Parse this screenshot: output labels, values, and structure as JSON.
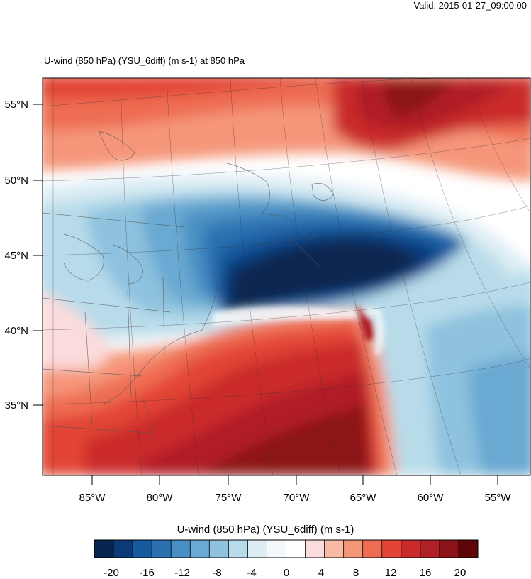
{
  "header": {
    "valid_text": "Valid: 2015-01-27_09:00:00",
    "title_text": "U-wind (850 hPa) (YSU_6diff)   (m s-1)     at   850 hPa"
  },
  "map": {
    "latitude_labels": [
      "55°N",
      "50°N",
      "45°N",
      "40°N",
      "35°N"
    ],
    "longitude_labels": [
      "85°W",
      "80°W",
      "75°W",
      "70°W",
      "65°W",
      "60°W",
      "55°W"
    ]
  },
  "colorbar": {
    "title": "U-wind (850 hPa) (YSU_6diff)  (m s-1)",
    "labels": [
      "-20",
      "-16",
      "-12",
      "-8",
      "-4",
      "0",
      "4",
      "8",
      "12",
      "16",
      "20"
    ],
    "colors": [
      "#08254f",
      "#0c3a78",
      "#185a9f",
      "#2b71b0",
      "#4890c3",
      "#6aa9d2",
      "#8ec2de",
      "#b8dbea",
      "#dcedf4",
      "#f3f9fb",
      "#ffffff",
      "#fbdcdc",
      "#f8b9a5",
      "#f59679",
      "#ee6d52",
      "#e24436",
      "#ca2a2c",
      "#b11f27",
      "#8c1219",
      "#5e0508"
    ]
  }
}
